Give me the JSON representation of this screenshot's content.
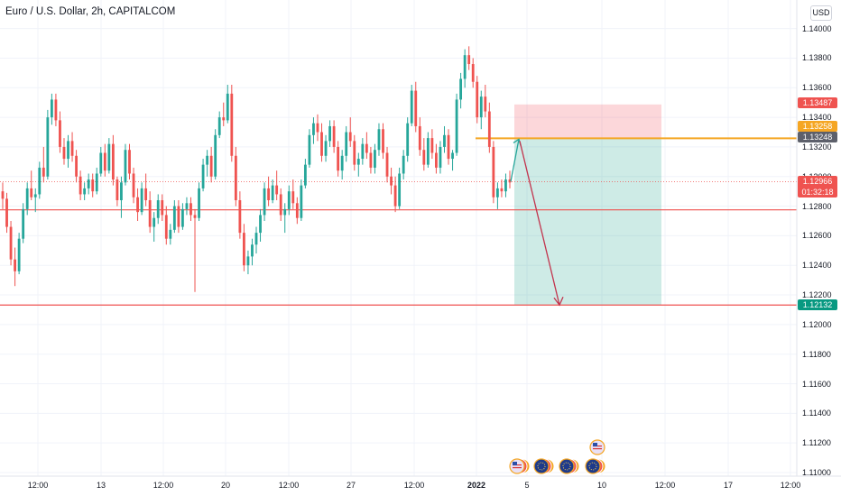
{
  "header": {
    "title": "Euro / U.S. Dollar, 2h, CAPITALCOM",
    "currency_button": "USD"
  },
  "chart_data": {
    "type": "candlestick",
    "title": "Euro / U.S. Dollar, 2h, CAPITALCOM",
    "currency": "USD",
    "ylim": [
      1.11,
      1.142
    ],
    "y_ticks": [
      "1.14000",
      "1.13800",
      "1.13600",
      "1.13400",
      "1.13200",
      "1.13000",
      "1.12800",
      "1.12600",
      "1.12400",
      "1.12200",
      "1.12000",
      "1.11800",
      "1.11600",
      "1.11400",
      "1.11200",
      "1.11000"
    ],
    "x_ticks": [
      {
        "label": "12:00",
        "bold": false
      },
      {
        "label": "13",
        "bold": false
      },
      {
        "label": "12:00",
        "bold": false
      },
      {
        "label": "20",
        "bold": false
      },
      {
        "label": "12:00",
        "bold": false
      },
      {
        "label": "27",
        "bold": false
      },
      {
        "label": "12:00",
        "bold": false
      },
      {
        "label": "2022",
        "bold": true
      },
      {
        "label": "5",
        "bold": false
      },
      {
        "label": "10",
        "bold": false
      },
      {
        "label": "12:00",
        "bold": false
      },
      {
        "label": "17",
        "bold": false
      },
      {
        "label": "12:00",
        "bold": false
      }
    ],
    "price_labels": [
      {
        "value": "1.13487",
        "color": "#ef5350"
      },
      {
        "value": "1.13258",
        "color": "#f5a623"
      },
      {
        "value": "1.13248",
        "color": "#5d606b"
      },
      {
        "value": "1.12966",
        "color": "#ef5350",
        "sub": "01:32:18"
      },
      {
        "value": "1.12132",
        "color": "#089981"
      }
    ],
    "horizontal_lines": [
      {
        "price": 1.12775,
        "color": "#ef5350"
      },
      {
        "price": 1.12132,
        "color": "#ef5350"
      },
      {
        "price": 1.13258,
        "color": "#f5a623"
      }
    ],
    "current_price": 1.12966,
    "position": {
      "direction": "short",
      "entry": 1.13258,
      "stop": 1.13487,
      "target": 1.12132
    },
    "candles_ohlc": [
      [
        1.129,
        1.1296,
        1.1278,
        1.1285
      ],
      [
        1.1285,
        1.1289,
        1.1262,
        1.1266
      ],
      [
        1.1266,
        1.127,
        1.124,
        1.1244
      ],
      [
        1.1244,
        1.1252,
        1.1226,
        1.1236
      ],
      [
        1.1236,
        1.1262,
        1.1234,
        1.1258
      ],
      [
        1.1258,
        1.1282,
        1.1255,
        1.1278
      ],
      [
        1.1278,
        1.1296,
        1.1274,
        1.1292
      ],
      [
        1.1292,
        1.1304,
        1.1284,
        1.1286
      ],
      [
        1.1286,
        1.1292,
        1.1276,
        1.1288
      ],
      [
        1.1288,
        1.131,
        1.1285,
        1.1306
      ],
      [
        1.1306,
        1.132,
        1.1296,
        1.13
      ],
      [
        1.13,
        1.1345,
        1.1298,
        1.134
      ],
      [
        1.134,
        1.1356,
        1.1335,
        1.1352
      ],
      [
        1.1352,
        1.1356,
        1.1334,
        1.1338
      ],
      [
        1.1338,
        1.1344,
        1.1316,
        1.132
      ],
      [
        1.132,
        1.1326,
        1.1308,
        1.1312
      ],
      [
        1.1312,
        1.1328,
        1.1306,
        1.1324
      ],
      [
        1.1324,
        1.133,
        1.131,
        1.1314
      ],
      [
        1.1314,
        1.1318,
        1.1296,
        1.13
      ],
      [
        1.13,
        1.1304,
        1.1284,
        1.1288
      ],
      [
        1.1288,
        1.1296,
        1.1284,
        1.1292
      ],
      [
        1.1292,
        1.1302,
        1.1288,
        1.1298
      ],
      [
        1.1298,
        1.1302,
        1.1286,
        1.129
      ],
      [
        1.129,
        1.1306,
        1.1288,
        1.1302
      ],
      [
        1.1302,
        1.132,
        1.13,
        1.1316
      ],
      [
        1.1316,
        1.1322,
        1.13,
        1.1304
      ],
      [
        1.1304,
        1.1326,
        1.1302,
        1.1322
      ],
      [
        1.1322,
        1.1328,
        1.1294,
        1.1298
      ],
      [
        1.1298,
        1.13,
        1.128,
        1.1284
      ],
      [
        1.1284,
        1.13,
        1.1272,
        1.1296
      ],
      [
        1.1296,
        1.1322,
        1.1294,
        1.1318
      ],
      [
        1.1318,
        1.1322,
        1.1298,
        1.1302
      ],
      [
        1.1302,
        1.1306,
        1.1282,
        1.1286
      ],
      [
        1.1286,
        1.1292,
        1.127,
        1.1276
      ],
      [
        1.1276,
        1.1296,
        1.1274,
        1.1292
      ],
      [
        1.1292,
        1.1302,
        1.128,
        1.1284
      ],
      [
        1.1284,
        1.129,
        1.1262,
        1.1266
      ],
      [
        1.1266,
        1.1276,
        1.1256,
        1.1272
      ],
      [
        1.1272,
        1.1288,
        1.1268,
        1.1284
      ],
      [
        1.1284,
        1.1288,
        1.127,
        1.1274
      ],
      [
        1.1274,
        1.128,
        1.1254,
        1.1258
      ],
      [
        1.1258,
        1.1268,
        1.1254,
        1.1264
      ],
      [
        1.1264,
        1.1284,
        1.1262,
        1.128
      ],
      [
        1.128,
        1.1284,
        1.1262,
        1.1266
      ],
      [
        1.1266,
        1.1282,
        1.1264,
        1.1278
      ],
      [
        1.1278,
        1.1286,
        1.1274,
        1.1282
      ],
      [
        1.1282,
        1.1286,
        1.127,
        1.1274
      ],
      [
        1.1274,
        1.1278,
        1.1222,
        1.1272
      ],
      [
        1.1272,
        1.1296,
        1.127,
        1.1292
      ],
      [
        1.1292,
        1.1312,
        1.129,
        1.1308
      ],
      [
        1.1308,
        1.1318,
        1.13,
        1.1314
      ],
      [
        1.1314,
        1.132,
        1.1296,
        1.13
      ],
      [
        1.13,
        1.1332,
        1.1298,
        1.1328
      ],
      [
        1.1328,
        1.1344,
        1.1326,
        1.134
      ],
      [
        1.134,
        1.135,
        1.1334,
        1.1338
      ],
      [
        1.1338,
        1.1362,
        1.1336,
        1.1356
      ],
      [
        1.1356,
        1.1362,
        1.131,
        1.1314
      ],
      [
        1.1314,
        1.132,
        1.128,
        1.1284
      ],
      [
        1.1284,
        1.129,
        1.1258,
        1.1262
      ],
      [
        1.1262,
        1.1268,
        1.1236,
        1.124
      ],
      [
        1.124,
        1.125,
        1.1234,
        1.1246
      ],
      [
        1.1246,
        1.1258,
        1.124,
        1.1254
      ],
      [
        1.1254,
        1.1266,
        1.1248,
        1.1262
      ],
      [
        1.1262,
        1.1278,
        1.1256,
        1.1274
      ],
      [
        1.1274,
        1.1296,
        1.127,
        1.1292
      ],
      [
        1.1292,
        1.13,
        1.128,
        1.1284
      ],
      [
        1.1284,
        1.1298,
        1.1282,
        1.1294
      ],
      [
        1.1294,
        1.1304,
        1.1284,
        1.1288
      ],
      [
        1.1288,
        1.1292,
        1.127,
        1.1274
      ],
      [
        1.1274,
        1.1282,
        1.1262,
        1.1278
      ],
      [
        1.1278,
        1.1294,
        1.1274,
        1.129
      ],
      [
        1.129,
        1.1298,
        1.1278,
        1.1282
      ],
      [
        1.1282,
        1.1286,
        1.1268,
        1.1272
      ],
      [
        1.1272,
        1.1298,
        1.127,
        1.1294
      ],
      [
        1.1294,
        1.1312,
        1.1292,
        1.1308
      ],
      [
        1.1308,
        1.1332,
        1.1306,
        1.1328
      ],
      [
        1.1328,
        1.134,
        1.1322,
        1.1336
      ],
      [
        1.1336,
        1.1342,
        1.1324,
        1.133
      ],
      [
        1.133,
        1.1336,
        1.131,
        1.1314
      ],
      [
        1.1314,
        1.1328,
        1.131,
        1.1324
      ],
      [
        1.1324,
        1.1338,
        1.132,
        1.1334
      ],
      [
        1.1334,
        1.1338,
        1.1316,
        1.132
      ],
      [
        1.132,
        1.1324,
        1.13,
        1.1304
      ],
      [
        1.1304,
        1.1318,
        1.1298,
        1.1314
      ],
      [
        1.1314,
        1.1334,
        1.131,
        1.133
      ],
      [
        1.133,
        1.134,
        1.132,
        1.1324
      ],
      [
        1.1324,
        1.1328,
        1.1304,
        1.1308
      ],
      [
        1.1308,
        1.1316,
        1.13,
        1.1312
      ],
      [
        1.1312,
        1.1326,
        1.1308,
        1.1322
      ],
      [
        1.1322,
        1.133,
        1.1312,
        1.1316
      ],
      [
        1.1316,
        1.132,
        1.1302,
        1.1306
      ],
      [
        1.1306,
        1.1322,
        1.1302,
        1.1318
      ],
      [
        1.1318,
        1.1336,
        1.1314,
        1.1332
      ],
      [
        1.1332,
        1.1336,
        1.1312,
        1.1316
      ],
      [
        1.1316,
        1.132,
        1.1296,
        1.13
      ],
      [
        1.13,
        1.1306,
        1.1288,
        1.1294
      ],
      [
        1.1294,
        1.13,
        1.1276,
        1.128
      ],
      [
        1.128,
        1.1306,
        1.1278,
        1.1302
      ],
      [
        1.1302,
        1.1318,
        1.1298,
        1.1314
      ],
      [
        1.1314,
        1.134,
        1.131,
        1.1336
      ],
      [
        1.1336,
        1.1362,
        1.1334,
        1.1358
      ],
      [
        1.1358,
        1.1364,
        1.133,
        1.1334
      ],
      [
        1.1334,
        1.134,
        1.1314,
        1.1318
      ],
      [
        1.1318,
        1.1326,
        1.1304,
        1.1308
      ],
      [
        1.1308,
        1.133,
        1.1306,
        1.1326
      ],
      [
        1.1326,
        1.1332,
        1.1312,
        1.1316
      ],
      [
        1.1316,
        1.1322,
        1.1302,
        1.1306
      ],
      [
        1.1306,
        1.1324,
        1.1302,
        1.132
      ],
      [
        1.132,
        1.1334,
        1.1316,
        1.1328
      ],
      [
        1.1328,
        1.1332,
        1.1308,
        1.1312
      ],
      [
        1.1312,
        1.1318,
        1.1304,
        1.1316
      ],
      [
        1.1316,
        1.1356,
        1.1314,
        1.1352
      ],
      [
        1.1352,
        1.137,
        1.1346,
        1.1366
      ],
      [
        1.1366,
        1.1386,
        1.136,
        1.1382
      ],
      [
        1.1382,
        1.1388,
        1.1372,
        1.1376
      ],
      [
        1.1376,
        1.138,
        1.136,
        1.1364
      ],
      [
        1.1364,
        1.1368,
        1.1336,
        1.134
      ],
      [
        1.134,
        1.1358,
        1.1332,
        1.1354
      ],
      [
        1.1354,
        1.1362,
        1.134,
        1.1344
      ],
      [
        1.1344,
        1.135,
        1.1316,
        1.132
      ],
      [
        1.132,
        1.1324,
        1.1282,
        1.1286
      ],
      [
        1.1286,
        1.1296,
        1.1278,
        1.1292
      ],
      [
        1.1292,
        1.1298,
        1.1286,
        1.129
      ],
      [
        1.129,
        1.1302,
        1.1286,
        1.1298
      ],
      [
        1.1298,
        1.1304,
        1.1292,
        1.1296
      ]
    ],
    "events": [
      {
        "icon": "us-flag-icon"
      },
      {
        "icon": "eu-flag-icon"
      },
      {
        "icon": "eu-flag-icon"
      },
      {
        "icon": "eu-flag-icon"
      },
      {
        "icon": "us-flag-icon"
      }
    ],
    "colors": {
      "up": "#26a69a",
      "down": "#ef5350",
      "grid": "#f0f3fa",
      "stop_zone": "rgba(242,54,69,0.2)",
      "target_zone": "rgba(8,153,129,0.2)",
      "arrow": "#c2344d",
      "arrow_up": "#26a69a"
    },
    "grid": true
  }
}
